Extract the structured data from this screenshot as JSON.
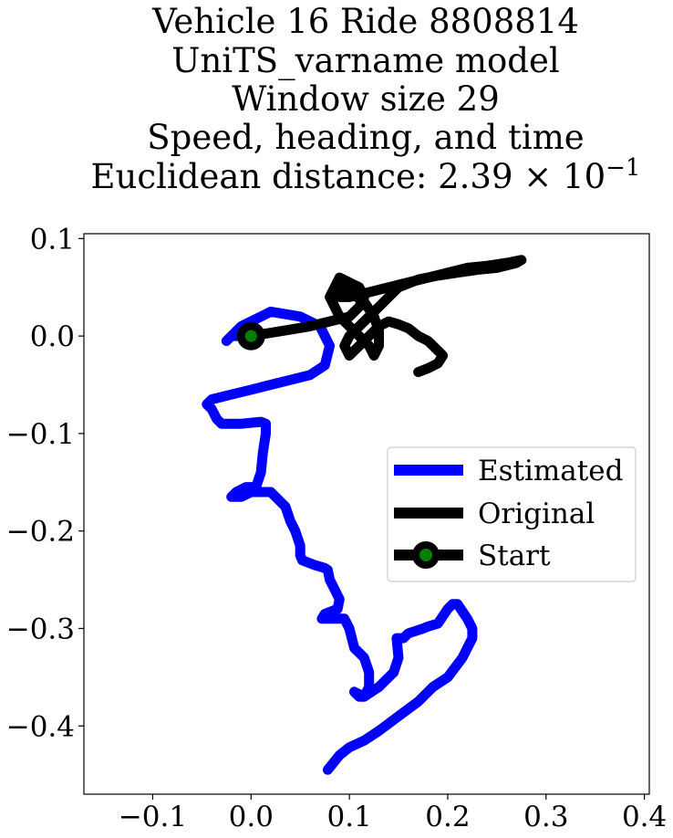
{
  "chart_data": {
    "type": "line",
    "title_lines": [
      "Vehicle 16 Ride 8808814",
      "UniTS_varname model",
      "Window size 29",
      "Speed, heading, and time",
      "Euclidean distance: 2.39 × 10"
    ],
    "title_exponent": "−1",
    "xlabel": "",
    "ylabel": "",
    "xlim": [
      -0.17,
      0.405
    ],
    "ylim": [
      -0.47,
      0.105
    ],
    "xticks": [
      -0.1,
      0.0,
      0.1,
      0.2,
      0.3,
      0.4
    ],
    "xtick_labels": [
      "−0.1",
      "0.0",
      "0.1",
      "0.2",
      "0.3",
      "0.4"
    ],
    "yticks": [
      0.1,
      0.0,
      -0.1,
      -0.2,
      -0.3,
      -0.4
    ],
    "ytick_labels": [
      "0.1",
      "0.0",
      "−0.1",
      "−0.2",
      "−0.3",
      "−0.4"
    ],
    "grid": false,
    "legend_position": "center-right",
    "series": [
      {
        "name": "Estimated",
        "color": "#0000ff",
        "x": [
          0.0,
          -0.02,
          -0.025,
          -0.01,
          0.02,
          0.05,
          0.07,
          0.08,
          0.075,
          0.06,
          0.04,
          0.02,
          0.0,
          -0.02,
          -0.04,
          -0.045,
          -0.04,
          -0.035,
          -0.03,
          -0.01,
          0.01,
          0.015,
          0.015,
          0.012,
          0.01,
          0.005,
          -0.005,
          -0.015,
          -0.02,
          -0.01,
          0.0,
          0.02,
          0.035,
          0.04,
          0.045,
          0.05,
          0.05,
          0.052,
          0.065,
          0.075,
          0.078,
          0.08,
          0.085,
          0.09,
          0.088,
          0.075,
          0.072,
          0.08,
          0.095,
          0.1,
          0.105,
          0.115,
          0.12,
          0.12,
          0.115,
          0.11,
          0.105,
          0.115,
          0.13,
          0.145,
          0.15,
          0.148,
          0.155,
          0.16,
          0.175,
          0.18,
          0.19,
          0.2,
          0.205,
          0.21,
          0.22,
          0.225,
          0.225,
          0.22,
          0.215,
          0.2,
          0.185,
          0.17,
          0.15,
          0.13,
          0.115,
          0.1,
          0.09,
          0.078
        ],
        "y": [
          0.0,
          0.0,
          -0.005,
          0.01,
          0.025,
          0.02,
          0.01,
          -0.01,
          -0.03,
          -0.04,
          -0.045,
          -0.05,
          -0.055,
          -0.06,
          -0.065,
          -0.07,
          -0.075,
          -0.085,
          -0.09,
          -0.09,
          -0.088,
          -0.09,
          -0.1,
          -0.12,
          -0.14,
          -0.155,
          -0.155,
          -0.16,
          -0.165,
          -0.165,
          -0.16,
          -0.16,
          -0.175,
          -0.19,
          -0.2,
          -0.215,
          -0.225,
          -0.23,
          -0.235,
          -0.238,
          -0.24,
          -0.25,
          -0.26,
          -0.27,
          -0.28,
          -0.285,
          -0.29,
          -0.29,
          -0.29,
          -0.3,
          -0.32,
          -0.33,
          -0.345,
          -0.36,
          -0.37,
          -0.37,
          -0.365,
          -0.37,
          -0.36,
          -0.345,
          -0.33,
          -0.31,
          -0.31,
          -0.305,
          -0.3,
          -0.298,
          -0.295,
          -0.28,
          -0.275,
          -0.275,
          -0.29,
          -0.3,
          -0.31,
          -0.32,
          -0.33,
          -0.35,
          -0.36,
          -0.375,
          -0.39,
          -0.405,
          -0.415,
          -0.422,
          -0.43,
          -0.445
        ]
      },
      {
        "name": "Original",
        "color": "#000000",
        "x": [
          0.0,
          0.03,
          0.06,
          0.08,
          0.1,
          0.11,
          0.115,
          0.11,
          0.1,
          0.09,
          0.085,
          0.08,
          0.085,
          0.09,
          0.1,
          0.11,
          0.12,
          0.125,
          0.13,
          0.13,
          0.125,
          0.115,
          0.1,
          0.09,
          0.085,
          0.09,
          0.1,
          0.12,
          0.14,
          0.16,
          0.18,
          0.2,
          0.22,
          0.24,
          0.26,
          0.275,
          0.27,
          0.25,
          0.23,
          0.21,
          0.19,
          0.17,
          0.15,
          0.14,
          0.13,
          0.12,
          0.11,
          0.1,
          0.095,
          0.1,
          0.11,
          0.12,
          0.13,
          0.14,
          0.15,
          0.16,
          0.17,
          0.18,
          0.19,
          0.195,
          0.19,
          0.18,
          0.17
        ],
        "y": [
          0.0,
          0.005,
          0.01,
          0.015,
          0.02,
          0.03,
          0.04,
          0.05,
          0.055,
          0.06,
          0.05,
          0.04,
          0.03,
          0.02,
          0.01,
          0.0,
          -0.01,
          -0.02,
          -0.01,
          0.005,
          0.02,
          0.035,
          0.045,
          0.05,
          0.045,
          0.04,
          0.04,
          0.045,
          0.05,
          0.055,
          0.06,
          0.065,
          0.07,
          0.072,
          0.075,
          0.078,
          0.075,
          0.07,
          0.068,
          0.065,
          0.062,
          0.058,
          0.05,
          0.04,
          0.03,
          0.02,
          0.01,
          0.0,
          -0.01,
          -0.02,
          -0.01,
          0.0,
          0.01,
          0.015,
          0.012,
          0.008,
          0.0,
          -0.005,
          -0.015,
          -0.02,
          -0.028,
          -0.033,
          -0.037
        ]
      }
    ],
    "start": {
      "name": "Start",
      "x": 0.0,
      "y": 0.0,
      "marker_face": "#008000",
      "marker_edge": "#000000"
    },
    "legend_entries": [
      "Estimated",
      "Original",
      "Start"
    ]
  }
}
